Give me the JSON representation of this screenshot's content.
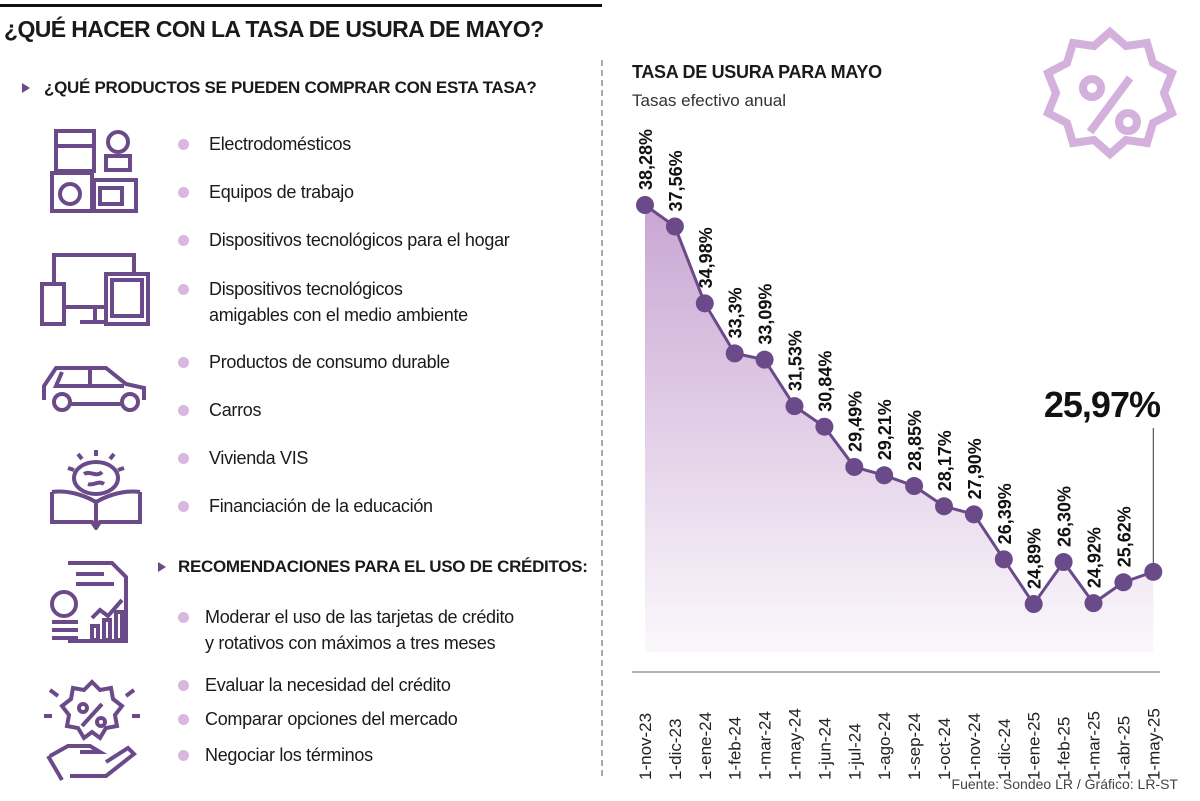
{
  "title": "¿QUÉ HACER CON LA TASA DE USURA DE MAYO?",
  "products": {
    "heading": "¿QUÉ PRODUCTOS SE PUEDEN COMPRAR CON ESTA TASA?",
    "items": [
      [
        "Electrodomésticos"
      ],
      [
        "Equipos de trabajo"
      ],
      [
        "Dispositivos tecnológicos para el hogar"
      ],
      [
        "Dispositivos tecnológicos",
        "amigables con el medio ambiente"
      ],
      [
        "Productos de consumo durable"
      ],
      [
        "Carros"
      ],
      [
        "Vivienda VIS"
      ],
      [
        "Financiación de la educación"
      ]
    ]
  },
  "recommendations": {
    "heading": "RECOMENDACIONES PARA EL USO DE CRÉDITOS:",
    "items": [
      [
        "Moderar el uso de las tarjetas de crédito",
        "y rotativos con máximos a tres meses"
      ],
      [
        "Evaluar la necesidad del crédito"
      ],
      [
        "Comparar opciones del mercado"
      ],
      [
        "Negociar los términos"
      ]
    ]
  },
  "colors": {
    "accent": "#6b4a8a",
    "light": "#d8b8de",
    "fill": "#c9a6d3"
  },
  "chart_data": {
    "type": "line",
    "title": "TASA DE USURA PARA MAYO",
    "subtitle": "Tasas efectivo anual",
    "categories": [
      "1-nov-23",
      "1-dic-23",
      "1-ene-24",
      "1-feb-24",
      "1-mar-24",
      "1-may-24",
      "1-jun-24",
      "1-jul-24",
      "1-ago-24",
      "1-sep-24",
      "1-oct-24",
      "1-nov-24",
      "1-dic-24",
      "1-ene-25",
      "1-feb-25",
      "1-mar-25",
      "1-abr-25",
      "1-may-25"
    ],
    "values": [
      38.28,
      37.56,
      34.98,
      33.3,
      33.09,
      31.53,
      30.84,
      29.49,
      29.21,
      28.85,
      28.17,
      27.9,
      26.39,
      24.89,
      26.3,
      24.92,
      25.62,
      25.97
    ],
    "labels": [
      "38,28%",
      "37,56%",
      "34,98%",
      "33,3%",
      "33,09%",
      "31,53%",
      "30,84%",
      "29,49%",
      "29,21%",
      "28,85%",
      "28,17%",
      "27,90%",
      "26,39%",
      "24,89%",
      "26,30%",
      "24,92%",
      "25,62%",
      "25,97%"
    ],
    "highlight_label": "25,97%",
    "ylabel": "",
    "xlabel": "",
    "grid": false
  },
  "source": "Fuente: Sondeo LR / Gráfico: LR-ST"
}
